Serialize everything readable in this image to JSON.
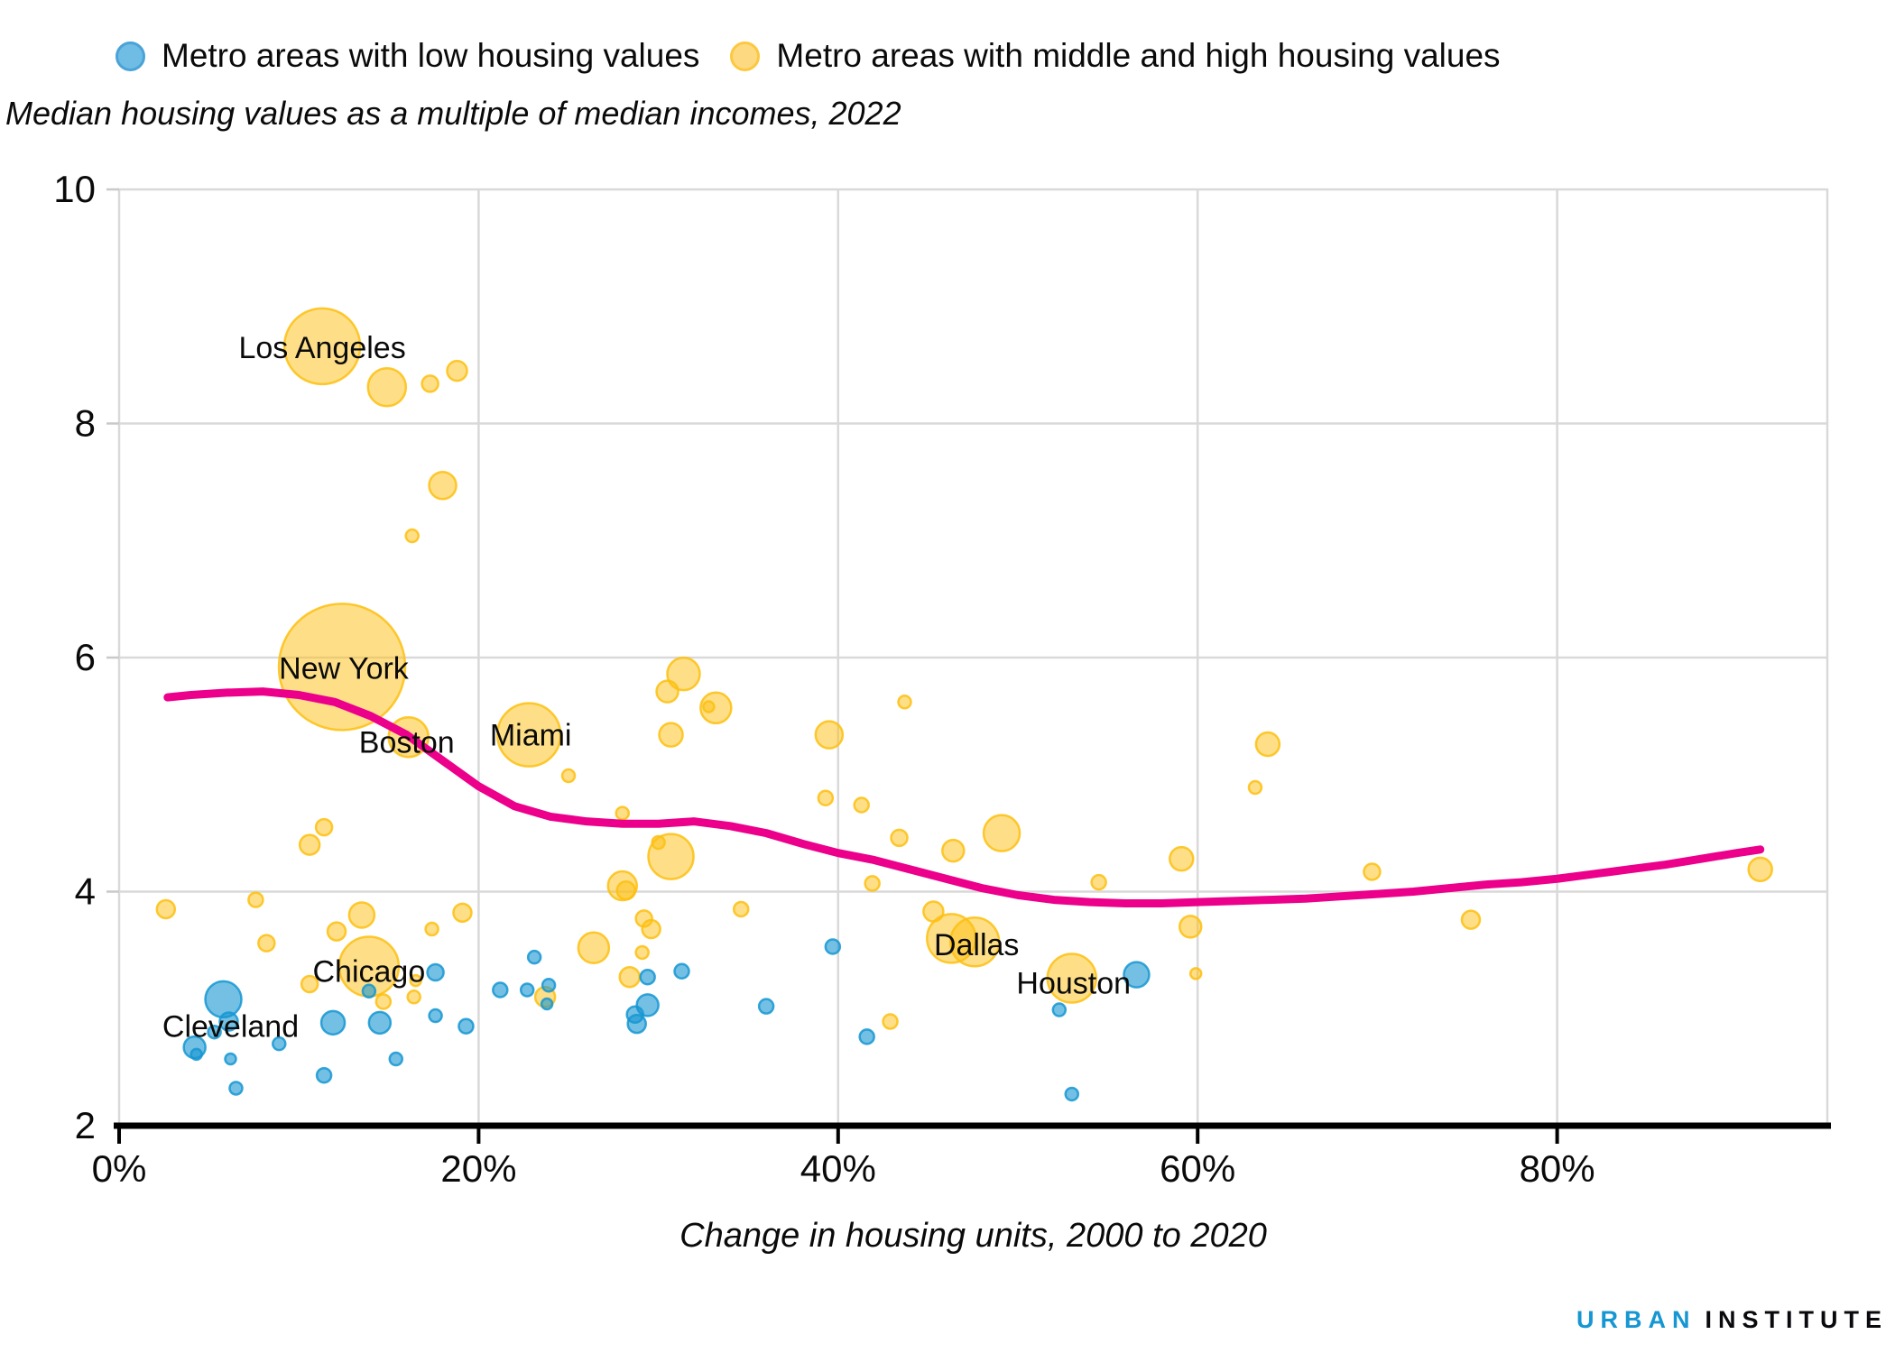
{
  "legend": {
    "items": [
      {
        "label": "Metro areas with low housing values",
        "color": "#1696d2"
      },
      {
        "label": "Metro areas with middle and high housing values",
        "color": "#fdbf11"
      }
    ]
  },
  "subtitle": "Median housing values as a multiple of median incomes, 2022",
  "footer": {
    "brand_primary": "URBAN",
    "brand_secondary": "INSTITUTE"
  },
  "chart_data": {
    "type": "scatter",
    "title": "Median housing values as a multiple of median incomes, 2022",
    "xlabel": "Change in housing units, 2000 to 2020",
    "ylabel": "Median housing values as a multiple of median incomes",
    "xlim": [
      0,
      95
    ],
    "ylim": [
      2,
      10
    ],
    "grid": true,
    "x_ticks": [
      {
        "value": 0,
        "label": "0%"
      },
      {
        "value": 20,
        "label": "20%"
      },
      {
        "value": 40,
        "label": "40%"
      },
      {
        "value": 60,
        "label": "60%"
      },
      {
        "value": 80,
        "label": "80%"
      }
    ],
    "y_ticks": [
      {
        "value": 2,
        "label": "2"
      },
      {
        "value": 4,
        "label": "4"
      },
      {
        "value": 6,
        "label": "6"
      },
      {
        "value": 8,
        "label": "8"
      },
      {
        "value": 10,
        "label": "10"
      }
    ],
    "series": [
      {
        "name": "Metro areas with middle and high housing values",
        "color": "#fdbf11",
        "fill_opacity": 0.5,
        "points": [
          [
            11.3,
            8.66,
            42
          ],
          [
            14.9,
            8.31,
            21
          ],
          [
            17.3,
            8.34,
            9
          ],
          [
            18.8,
            8.45,
            11
          ],
          [
            18.0,
            7.47,
            15
          ],
          [
            16.3,
            7.04,
            7
          ],
          [
            12.4,
            5.92,
            70
          ],
          [
            16.1,
            5.32,
            22
          ],
          [
            11.4,
            4.55,
            9
          ],
          [
            10.6,
            4.4,
            11
          ],
          [
            22.8,
            5.34,
            35
          ],
          [
            25.0,
            4.99,
            7
          ],
          [
            31.4,
            5.86,
            18
          ],
          [
            30.5,
            5.71,
            12
          ],
          [
            33.2,
            5.57,
            17
          ],
          [
            32.8,
            5.58,
            6
          ],
          [
            30.7,
            5.34,
            13
          ],
          [
            28.0,
            4.67,
            7
          ],
          [
            30.0,
            4.42,
            7
          ],
          [
            30.7,
            4.3,
            25
          ],
          [
            28.0,
            4.05,
            16
          ],
          [
            28.2,
            4.01,
            10
          ],
          [
            39.5,
            5.34,
            15
          ],
          [
            43.7,
            5.62,
            7
          ],
          [
            39.3,
            4.8,
            8
          ],
          [
            41.3,
            4.74,
            8
          ],
          [
            43.4,
            4.46,
            9
          ],
          [
            41.9,
            4.07,
            8
          ],
          [
            34.6,
            3.85,
            8
          ],
          [
            29.2,
            3.77,
            9
          ],
          [
            29.6,
            3.68,
            10
          ],
          [
            26.4,
            3.52,
            17
          ],
          [
            29.1,
            3.48,
            7
          ],
          [
            28.4,
            3.27,
            11
          ],
          [
            23.7,
            3.1,
            11
          ],
          [
            42.9,
            2.89,
            8
          ],
          [
            49.1,
            4.5,
            20
          ],
          [
            46.4,
            4.35,
            12
          ],
          [
            54.5,
            4.08,
            8
          ],
          [
            59.1,
            4.28,
            13
          ],
          [
            45.3,
            3.83,
            11
          ],
          [
            46.3,
            3.6,
            27
          ],
          [
            47.6,
            3.57,
            27
          ],
          [
            53.0,
            3.26,
            27
          ],
          [
            59.6,
            3.7,
            12
          ],
          [
            59.9,
            3.3,
            6
          ],
          [
            63.9,
            5.26,
            13
          ],
          [
            63.2,
            4.89,
            7
          ],
          [
            69.7,
            4.17,
            9
          ],
          [
            75.2,
            3.76,
            10
          ],
          [
            91.3,
            4.19,
            13
          ],
          [
            13.9,
            3.36,
            33
          ],
          [
            13.5,
            3.8,
            14
          ],
          [
            12.1,
            3.66,
            10
          ],
          [
            10.6,
            3.21,
            9
          ],
          [
            14.7,
            3.06,
            8
          ],
          [
            16.4,
            3.1,
            7
          ],
          [
            16.5,
            3.24,
            6
          ],
          [
            17.4,
            3.68,
            7
          ],
          [
            19.1,
            3.82,
            10
          ],
          [
            2.6,
            3.85,
            10
          ],
          [
            7.6,
            3.93,
            8
          ],
          [
            8.2,
            3.56,
            9
          ]
        ]
      },
      {
        "name": "Metro areas with low housing values",
        "color": "#1696d2",
        "fill_opacity": 0.6,
        "points": [
          [
            5.8,
            3.08,
            20
          ],
          [
            6.1,
            2.89,
            10
          ],
          [
            5.3,
            2.8,
            7
          ],
          [
            4.2,
            2.67,
            12
          ],
          [
            4.3,
            2.61,
            6
          ],
          [
            8.9,
            2.7,
            7
          ],
          [
            6.2,
            2.57,
            6
          ],
          [
            6.5,
            2.32,
            7
          ],
          [
            11.4,
            2.43,
            8
          ],
          [
            11.9,
            2.88,
            13
          ],
          [
            14.5,
            2.88,
            12
          ],
          [
            15.4,
            2.57,
            7
          ],
          [
            17.6,
            2.94,
            7
          ],
          [
            19.3,
            2.85,
            8
          ],
          [
            13.9,
            3.15,
            7
          ],
          [
            17.6,
            3.31,
            9
          ],
          [
            21.2,
            3.16,
            8
          ],
          [
            23.1,
            3.44,
            7
          ],
          [
            22.7,
            3.16,
            7
          ],
          [
            23.9,
            3.2,
            7
          ],
          [
            23.8,
            3.04,
            6
          ],
          [
            29.4,
            3.27,
            8
          ],
          [
            31.3,
            3.32,
            8
          ],
          [
            29.4,
            3.03,
            12
          ],
          [
            28.7,
            2.95,
            9
          ],
          [
            28.8,
            2.87,
            10
          ],
          [
            36.0,
            3.02,
            8
          ],
          [
            39.7,
            3.53,
            8
          ],
          [
            41.6,
            2.76,
            8
          ],
          [
            52.3,
            2.99,
            7
          ],
          [
            53.0,
            2.27,
            7
          ],
          [
            56.6,
            3.29,
            14
          ]
        ]
      }
    ],
    "trend_line": {
      "color": "#ec008b",
      "width": 9,
      "points": [
        [
          2.7,
          5.66
        ],
        [
          4,
          5.68
        ],
        [
          6,
          5.7
        ],
        [
          8,
          5.71
        ],
        [
          10,
          5.68
        ],
        [
          12,
          5.62
        ],
        [
          14,
          5.5
        ],
        [
          16,
          5.34
        ],
        [
          18,
          5.12
        ],
        [
          20,
          4.9
        ],
        [
          22,
          4.73
        ],
        [
          24,
          4.64
        ],
        [
          26,
          4.6
        ],
        [
          28,
          4.58
        ],
        [
          30,
          4.58
        ],
        [
          32,
          4.6
        ],
        [
          34,
          4.56
        ],
        [
          36,
          4.5
        ],
        [
          38,
          4.41
        ],
        [
          40,
          4.33
        ],
        [
          42,
          4.27
        ],
        [
          44,
          4.19
        ],
        [
          46,
          4.11
        ],
        [
          48,
          4.03
        ],
        [
          50,
          3.97
        ],
        [
          52,
          3.93
        ],
        [
          54,
          3.91
        ],
        [
          56,
          3.9
        ],
        [
          58,
          3.9
        ],
        [
          60,
          3.91
        ],
        [
          62,
          3.92
        ],
        [
          64,
          3.93
        ],
        [
          66,
          3.94
        ],
        [
          68,
          3.96
        ],
        [
          70,
          3.98
        ],
        [
          72,
          4.0
        ],
        [
          74,
          4.03
        ],
        [
          76,
          4.06
        ],
        [
          78,
          4.08
        ],
        [
          80,
          4.11
        ],
        [
          82,
          4.15
        ],
        [
          84,
          4.19
        ],
        [
          86,
          4.23
        ],
        [
          88,
          4.28
        ],
        [
          90,
          4.33
        ],
        [
          91.3,
          4.36
        ]
      ]
    },
    "city_labels": [
      {
        "name": "Los Angeles",
        "x": 11.3,
        "y": 8.65
      },
      {
        "name": "New York",
        "x": 12.5,
        "y": 5.91
      },
      {
        "name": "Boston",
        "x": 16.0,
        "y": 5.28
      },
      {
        "name": "Miami",
        "x": 22.9,
        "y": 5.34
      },
      {
        "name": "Chicago",
        "x": 13.9,
        "y": 3.32
      },
      {
        "name": "Cleveland",
        "x": 6.2,
        "y": 2.85
      },
      {
        "name": "Dallas",
        "x": 47.7,
        "y": 3.55
      },
      {
        "name": "Houston",
        "x": 53.1,
        "y": 3.22
      }
    ],
    "legend_position": "top"
  }
}
